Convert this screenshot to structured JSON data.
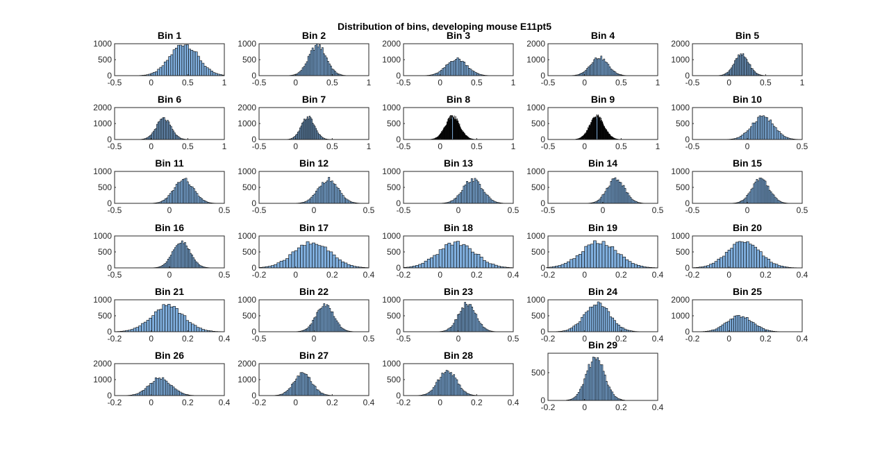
{
  "figure": {
    "title": "Distribution of bins, developing mouse E11pt5"
  },
  "chart_data": [
    {
      "type": "bar",
      "title": "Bin 1",
      "mean": 0.45,
      "sd": 0.19,
      "peak": 1000,
      "yticks": [
        0,
        500,
        1000
      ],
      "ylim": [
        0,
        1000
      ],
      "xticks": [
        -0.5,
        0,
        0.5,
        1
      ],
      "xlim": [
        -0.5,
        1
      ],
      "color": "#7FAEDD",
      "nbars": 50
    },
    {
      "type": "bar",
      "title": "Bin 2",
      "mean": 0.3,
      "sd": 0.12,
      "peak": 950,
      "yticks": [
        0,
        500,
        1000
      ],
      "ylim": [
        0,
        1000
      ],
      "xticks": [
        -0.5,
        0,
        0.5,
        1
      ],
      "xlim": [
        -0.5,
        1
      ],
      "color": "#7FAEDD",
      "nbars": 50
    },
    {
      "type": "bar",
      "title": "Bin 3",
      "mean": 0.23,
      "sd": 0.14,
      "peak": 1050,
      "yticks": [
        0,
        1000,
        2000
      ],
      "ylim": [
        0,
        2000
      ],
      "xticks": [
        -0.5,
        0,
        0.5,
        1
      ],
      "xlim": [
        -0.5,
        1
      ],
      "color": "#7FAEDD",
      "nbars": 50
    },
    {
      "type": "bar",
      "title": "Bin 4",
      "mean": 0.2,
      "sd": 0.12,
      "peak": 1150,
      "yticks": [
        0,
        1000,
        2000
      ],
      "ylim": [
        0,
        2000
      ],
      "xticks": [
        -0.5,
        0,
        0.5,
        1
      ],
      "xlim": [
        -0.5,
        1
      ],
      "color": "#7FAEDD",
      "nbars": 50
    },
    {
      "type": "bar",
      "title": "Bin 5",
      "mean": 0.17,
      "sd": 0.1,
      "peak": 1300,
      "yticks": [
        0,
        1000,
        2000
      ],
      "ylim": [
        0,
        2000
      ],
      "xticks": [
        -0.5,
        0,
        0.5,
        1
      ],
      "xlim": [
        -0.5,
        1
      ],
      "color": "#7FAEDD",
      "nbars": 50
    },
    {
      "type": "bar",
      "title": "Bin 6",
      "mean": 0.17,
      "sd": 0.1,
      "peak": 1300,
      "yticks": [
        0,
        1000,
        2000
      ],
      "ylim": [
        0,
        2000
      ],
      "xticks": [
        -0.5,
        0,
        0.5,
        1
      ],
      "xlim": [
        -0.5,
        1
      ],
      "color": "#7FAEDD",
      "nbars": 50
    },
    {
      "type": "bar",
      "title": "Bin 7",
      "mean": 0.17,
      "sd": 0.09,
      "peak": 1400,
      "yticks": [
        0,
        1000,
        2000
      ],
      "ylim": [
        0,
        2000
      ],
      "xticks": [
        -0.5,
        0,
        0.5,
        1
      ],
      "xlim": [
        -0.5,
        1
      ],
      "color": "#7FAEDD",
      "nbars": 50
    },
    {
      "type": "bar",
      "title": "Bin 8",
      "mean": 0.17,
      "sd": 0.1,
      "peak": 730,
      "yticks": [
        0,
        500,
        1000
      ],
      "ylim": [
        0,
        1000
      ],
      "xticks": [
        -0.5,
        0,
        0.5,
        1
      ],
      "xlim": [
        -0.5,
        1
      ],
      "color": "#000000",
      "nbars": 120
    },
    {
      "type": "bar",
      "title": "Bin 9",
      "mean": 0.17,
      "sd": 0.1,
      "peak": 730,
      "yticks": [
        0,
        500,
        1000
      ],
      "ylim": [
        0,
        1000
      ],
      "xticks": [
        -0.5,
        0,
        0.5,
        1
      ],
      "xlim": [
        -0.5,
        1
      ],
      "color": "#000000",
      "nbars": 120
    },
    {
      "type": "bar",
      "title": "Bin 10",
      "mean": 0.14,
      "sd": 0.1,
      "peak": 730,
      "yticks": [
        0,
        500,
        1000
      ],
      "ylim": [
        0,
        1000
      ],
      "xticks": [
        -0.5,
        0,
        0.5
      ],
      "xlim": [
        -0.5,
        0.5
      ],
      "color": "#7FAEDD",
      "nbars": 50
    },
    {
      "type": "bar",
      "title": "Bin 11",
      "mean": 0.13,
      "sd": 0.09,
      "peak": 740,
      "yticks": [
        0,
        500,
        1000
      ],
      "ylim": [
        0,
        1000
      ],
      "xticks": [
        -0.5,
        0,
        0.5
      ],
      "xlim": [
        -0.5,
        0.5
      ],
      "color": "#7FAEDD",
      "nbars": 50
    },
    {
      "type": "bar",
      "title": "Bin 12",
      "mean": 0.13,
      "sd": 0.09,
      "peak": 750,
      "yticks": [
        0,
        500,
        1000
      ],
      "ylim": [
        0,
        1000
      ],
      "xticks": [
        -0.5,
        0,
        0.5
      ],
      "xlim": [
        -0.5,
        0.5
      ],
      "color": "#7FAEDD",
      "nbars": 50
    },
    {
      "type": "bar",
      "title": "Bin 13",
      "mean": 0.13,
      "sd": 0.09,
      "peak": 750,
      "yticks": [
        0,
        500,
        1000
      ],
      "ylim": [
        0,
        1000
      ],
      "xticks": [
        -0.5,
        0,
        0.5
      ],
      "xlim": [
        -0.5,
        0.5
      ],
      "color": "#7FAEDD",
      "nbars": 50
    },
    {
      "type": "bar",
      "title": "Bin 14",
      "mean": 0.12,
      "sd": 0.08,
      "peak": 780,
      "yticks": [
        0,
        500,
        1000
      ],
      "ylim": [
        0,
        1000
      ],
      "xticks": [
        -0.5,
        0,
        0.5
      ],
      "xlim": [
        -0.5,
        0.5
      ],
      "color": "#7FAEDD",
      "nbars": 50
    },
    {
      "type": "bar",
      "title": "Bin 15",
      "mean": 0.12,
      "sd": 0.08,
      "peak": 780,
      "yticks": [
        0,
        500,
        1000
      ],
      "ylim": [
        0,
        1000
      ],
      "xticks": [
        -0.5,
        0,
        0.5
      ],
      "xlim": [
        -0.5,
        0.5
      ],
      "color": "#7FAEDD",
      "nbars": 50
    },
    {
      "type": "bar",
      "title": "Bin 16",
      "mean": 0.11,
      "sd": 0.08,
      "peak": 800,
      "yticks": [
        0,
        500,
        1000
      ],
      "ylim": [
        0,
        1000
      ],
      "xticks": [
        -0.5,
        0,
        0.5
      ],
      "xlim": [
        -0.5,
        0.5
      ],
      "color": "#7FAEDD",
      "nbars": 50
    },
    {
      "type": "bar",
      "title": "Bin 17",
      "mean": 0.09,
      "sd": 0.1,
      "peak": 800,
      "yticks": [
        0,
        500,
        1000
      ],
      "ylim": [
        0,
        1000
      ],
      "xticks": [
        -0.2,
        0,
        0.2,
        0.4
      ],
      "xlim": [
        -0.2,
        0.4
      ],
      "color": "#7FAEDD",
      "nbars": 50
    },
    {
      "type": "bar",
      "title": "Bin 18",
      "mean": 0.09,
      "sd": 0.1,
      "peak": 800,
      "yticks": [
        0,
        500,
        1000
      ],
      "ylim": [
        0,
        1000
      ],
      "xticks": [
        -0.2,
        0,
        0.2,
        0.4
      ],
      "xlim": [
        -0.2,
        0.4
      ],
      "color": "#7FAEDD",
      "nbars": 50
    },
    {
      "type": "bar",
      "title": "Bin 19",
      "mean": 0.08,
      "sd": 0.1,
      "peak": 800,
      "yticks": [
        0,
        500,
        1000
      ],
      "ylim": [
        0,
        1000
      ],
      "xticks": [
        -0.2,
        0,
        0.2,
        0.4
      ],
      "xlim": [
        -0.2,
        0.4
      ],
      "color": "#7FAEDD",
      "nbars": 50
    },
    {
      "type": "bar",
      "title": "Bin 20",
      "mean": 0.08,
      "sd": 0.09,
      "peak": 800,
      "yticks": [
        0,
        500,
        1000
      ],
      "ylim": [
        0,
        1000
      ],
      "xticks": [
        -0.2,
        0,
        0.2,
        0.4
      ],
      "xlim": [
        -0.2,
        0.4
      ],
      "color": "#7FAEDD",
      "nbars": 50
    },
    {
      "type": "bar",
      "title": "Bin 21",
      "mean": 0.09,
      "sd": 0.09,
      "peak": 800,
      "yticks": [
        0,
        500,
        1000
      ],
      "ylim": [
        0,
        1000
      ],
      "xticks": [
        -0.2,
        0,
        0.2,
        0.4
      ],
      "xlim": [
        -0.2,
        0.4
      ],
      "color": "#7FAEDD",
      "nbars": 50
    },
    {
      "type": "bar",
      "title": "Bin 22",
      "mean": 0.1,
      "sd": 0.08,
      "peak": 850,
      "yticks": [
        0,
        500,
        1000
      ],
      "ylim": [
        0,
        1000
      ],
      "xticks": [
        -0.5,
        0,
        0.5
      ],
      "xlim": [
        -0.5,
        0.5
      ],
      "color": "#7FAEDD",
      "nbars": 50
    },
    {
      "type": "bar",
      "title": "Bin 23",
      "mean": 0.08,
      "sd": 0.08,
      "peak": 870,
      "yticks": [
        0,
        500,
        1000
      ],
      "ylim": [
        0,
        1000
      ],
      "xticks": [
        -0.5,
        0,
        0.5
      ],
      "xlim": [
        -0.5,
        0.5
      ],
      "color": "#7FAEDD",
      "nbars": 50
    },
    {
      "type": "bar",
      "title": "Bin 24",
      "mean": 0.07,
      "sd": 0.07,
      "peak": 880,
      "yticks": [
        0,
        500,
        1000
      ],
      "ylim": [
        0,
        1000
      ],
      "xticks": [
        -0.2,
        0,
        0.2,
        0.4
      ],
      "xlim": [
        -0.2,
        0.4
      ],
      "color": "#7FAEDD",
      "nbars": 50
    },
    {
      "type": "bar",
      "title": "Bin 25",
      "mean": 0.06,
      "sd": 0.07,
      "peak": 1000,
      "yticks": [
        0,
        1000,
        2000
      ],
      "ylim": [
        0,
        2000
      ],
      "xticks": [
        -0.2,
        0,
        0.2,
        0.4
      ],
      "xlim": [
        -0.2,
        0.4
      ],
      "color": "#7FAEDD",
      "nbars": 50
    },
    {
      "type": "bar",
      "title": "Bin 26",
      "mean": 0.05,
      "sd": 0.06,
      "peak": 1100,
      "yticks": [
        0,
        1000,
        2000
      ],
      "ylim": [
        0,
        2000
      ],
      "xticks": [
        -0.2,
        0,
        0.2,
        0.4
      ],
      "xlim": [
        -0.2,
        0.4
      ],
      "color": "#7FAEDD",
      "nbars": 50
    },
    {
      "type": "bar",
      "title": "Bin 27",
      "mean": 0.04,
      "sd": 0.05,
      "peak": 1350,
      "yticks": [
        0,
        1000,
        2000
      ],
      "ylim": [
        0,
        2000
      ],
      "xticks": [
        -0.2,
        0,
        0.2,
        0.4
      ],
      "xlim": [
        -0.2,
        0.4
      ],
      "color": "#7FAEDD",
      "nbars": 50
    },
    {
      "type": "bar",
      "title": "Bin 28",
      "mean": 0.04,
      "sd": 0.05,
      "peak": 780,
      "yticks": [
        0,
        500,
        1000
      ],
      "ylim": [
        0,
        1000
      ],
      "xticks": [
        -0.2,
        0,
        0.2,
        0.4
      ],
      "xlim": [
        -0.2,
        0.4
      ],
      "color": "#7FAEDD",
      "nbars": 50
    },
    {
      "type": "bar",
      "title": "Bin 29",
      "mean": 0.06,
      "sd": 0.05,
      "peak": 770,
      "yticks": [
        0,
        500
      ],
      "ylim": [
        0,
        850
      ],
      "xticks": [
        -0.2,
        0,
        0.2,
        0.4
      ],
      "xlim": [
        -0.2,
        0.4
      ],
      "color": "#7FAEDD",
      "nbars": 50
    }
  ]
}
